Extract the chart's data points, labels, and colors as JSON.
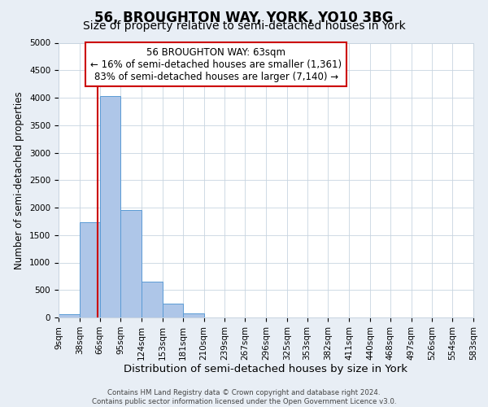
{
  "title": "56, BROUGHTON WAY, YORK, YO10 3BG",
  "subtitle": "Size of property relative to semi-detached houses in York",
  "bar_bins": [
    9,
    38,
    66,
    95,
    124,
    153,
    181,
    210,
    239,
    267,
    296,
    325,
    353,
    382,
    411,
    440,
    468,
    497,
    526,
    554,
    583
  ],
  "bar_heights": [
    60,
    1730,
    4030,
    1950,
    650,
    245,
    75,
    5,
    0,
    0,
    0,
    0,
    0,
    0,
    0,
    0,
    0,
    0,
    0,
    0
  ],
  "bar_color": "#aec6e8",
  "bar_edge_color": "#5b9bd5",
  "property_line_x": 63,
  "property_line_color": "#cc0000",
  "ann_line1": "56 BROUGHTON WAY: 63sqm",
  "ann_line2": "← 16% of semi-detached houses are smaller (1,361)",
  "ann_line3": "83% of semi-detached houses are larger (7,140) →",
  "annotation_box_color": "#cc0000",
  "xlabel": "Distribution of semi-detached houses by size in York",
  "ylabel": "Number of semi-detached properties",
  "ylim": [
    0,
    5000
  ],
  "xlim": [
    9,
    583
  ],
  "yticks": [
    0,
    500,
    1000,
    1500,
    2000,
    2500,
    3000,
    3500,
    4000,
    4500,
    5000
  ],
  "xtick_labels": [
    "9sqm",
    "38sqm",
    "66sqm",
    "95sqm",
    "124sqm",
    "153sqm",
    "181sqm",
    "210sqm",
    "239sqm",
    "267sqm",
    "296sqm",
    "325sqm",
    "353sqm",
    "382sqm",
    "411sqm",
    "440sqm",
    "468sqm",
    "497sqm",
    "526sqm",
    "554sqm",
    "583sqm"
  ],
  "xtick_positions": [
    9,
    38,
    66,
    95,
    124,
    153,
    181,
    210,
    239,
    267,
    296,
    325,
    353,
    382,
    411,
    440,
    468,
    497,
    526,
    554,
    583
  ],
  "footer_line1": "Contains HM Land Registry data © Crown copyright and database right 2024.",
  "footer_line2": "Contains public sector information licensed under the Open Government Licence v3.0.",
  "background_color": "#e8eef5",
  "plot_bg_color": "#ffffff",
  "grid_color": "#c8d4e0",
  "title_fontsize": 12,
  "subtitle_fontsize": 10,
  "xlabel_fontsize": 9.5,
  "ylabel_fontsize": 8.5,
  "tick_fontsize": 7.5,
  "annotation_fontsize": 8.5,
  "footer_fontsize": 6.2
}
